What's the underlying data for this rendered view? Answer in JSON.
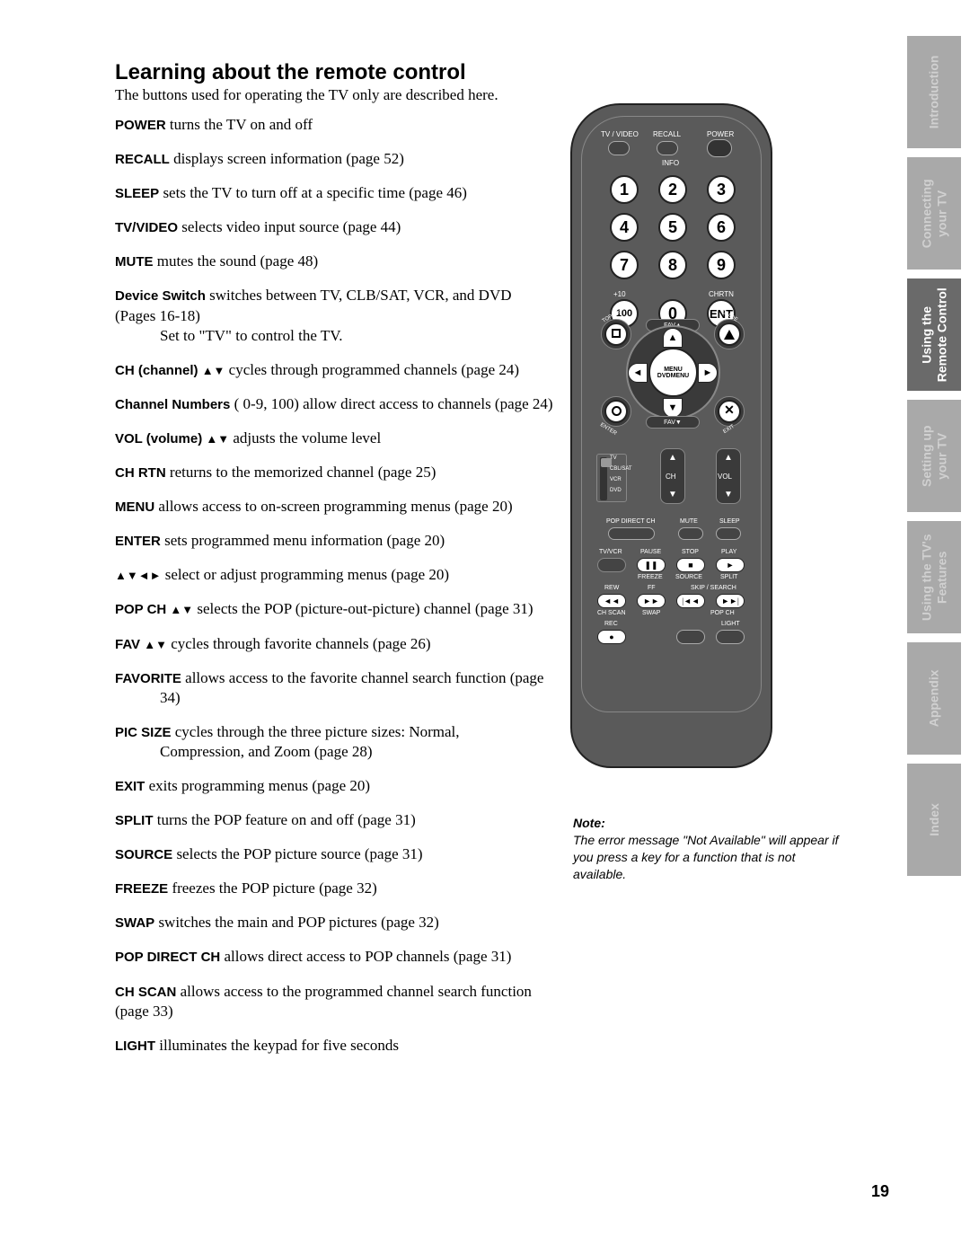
{
  "title": "Learning about the remote control",
  "intro": "The buttons used for operating the TV only are described here.",
  "buttons": [
    {
      "label": "POWER",
      "desc": " turns the TV on and off"
    },
    {
      "label": "RECALL",
      "desc": " displays screen information (page 52)"
    },
    {
      "label": "SLEEP",
      "desc": " sets the TV to turn off at a specific time (page 46)"
    },
    {
      "label": "TV/VIDEO",
      "desc": "  selects video input source (page 44)"
    },
    {
      "label": "MUTE",
      "desc": " mutes the sound (page 48)"
    },
    {
      "label": "Device Switch",
      "desc": " switches between TV, CLB/SAT, VCR, and DVD (Pages 16-18)",
      "cont": "Set to \"TV\" to control the TV."
    },
    {
      "label": "CH (channel) ",
      "arrows": "▲▼",
      "desc": " cycles through programmed channels (page 24)"
    },
    {
      "label": "Channel Numbers",
      "desc": " 0-9, 100) allow direct access to channels (page 24)",
      "prefix": " ("
    },
    {
      "label": "VOL (volume) ",
      "arrows": "▲▼",
      "desc": " adjusts the volume level"
    },
    {
      "label": "CH RTN",
      "desc": " returns to the memorized channel (page 25)"
    },
    {
      "label": "MENU",
      "desc": " allows access to on-screen programming menus (page 20)"
    },
    {
      "label": "ENTER",
      "desc": " sets programmed menu information (page 20)"
    },
    {
      "label": "",
      "arrows": "▲▼◄►",
      "desc": " select or adjust programming menus (page 20)"
    },
    {
      "label": "POP CH ",
      "arrows": "▲▼",
      "desc": " selects the POP (picture-out-picture) channel (page 31)"
    },
    {
      "label": "FAV ",
      "arrows": "▲▼",
      "desc": " cycles through favorite channels (page 26)"
    },
    {
      "label": "FAVORITE",
      "desc": " allows access to the favorite channel search function (page",
      "cont": "34)"
    },
    {
      "label": "PIC SIZE",
      "desc": "  cycles through the three picture sizes: Normal,",
      "cont": "Compression, and Zoom (page 28)"
    },
    {
      "label": "EXIT",
      "desc": " exits programming menus (page 20)"
    },
    {
      "label": "SPLIT",
      "desc": " turns the POP feature on and off (page 31)"
    },
    {
      "label": "SOURCE",
      "desc": " selects the POP picture source (page 31)"
    },
    {
      "label": "FREEZE",
      "desc": " freezes the POP picture (page 32)"
    },
    {
      "label": "SWAP",
      "desc": " switches the main and POP pictures (page 32)"
    },
    {
      "label": "POP DIRECT CH",
      "desc": " allows direct access to POP channels (page 31)"
    },
    {
      "label": "CH SCAN",
      "desc": " allows access to the programmed channel search function (page 33)"
    },
    {
      "label": "LIGHT",
      "desc": " illuminates the keypad for five seconds"
    }
  ],
  "side_tabs": [
    {
      "text": "Introduction",
      "active": false
    },
    {
      "text": "Connecting\nyour TV",
      "active": false
    },
    {
      "text": "Using the\nRemote Control",
      "active": true
    },
    {
      "text": "Setting up\nyour TV",
      "active": false
    },
    {
      "text": "Using the TV's\nFeatures",
      "active": false
    },
    {
      "text": "Appendix",
      "active": false
    },
    {
      "text": "Index",
      "active": false
    }
  ],
  "remote": {
    "top_labels": {
      "tvvideo": "TV / VIDEO",
      "recall": "RECALL",
      "power": "POWER",
      "info": "INFO"
    },
    "numbers": [
      "1",
      "2",
      "3",
      "4",
      "5",
      "6",
      "7",
      "8",
      "9",
      "100",
      "0",
      "ENT"
    ],
    "sub_labels": {
      "plus10": "+10",
      "chrtn": "CHRTN"
    },
    "corner_labels": {
      "tl": "TOP MENU",
      "tr": "GUIDE",
      "bl": "ENTER",
      "br": "EXIT",
      "tl2": "FAVORITE",
      "tr2": "PIC SIZE",
      "br2": "CLEAR"
    },
    "fav_up": "FAV▲",
    "fav_down": "FAV▼",
    "menu1": "MENU",
    "menu2": "DVDMENU",
    "switch": [
      "TV",
      "CBL/SAT",
      "VCR",
      "DVD"
    ],
    "rockers": {
      "ch": "CH",
      "vol": "VOL"
    },
    "row1": {
      "pop": "POP DIRECT CH",
      "mute": "MUTE",
      "sleep": "SLEEP"
    },
    "row2": {
      "tvvcr": "TV/VCR",
      "pause": "PAUSE",
      "stop": "STOP",
      "play": "PLAY"
    },
    "row3": {
      "freeze": "FREEZE",
      "source": "SOURCE",
      "split": "SPLIT"
    },
    "row4": {
      "rew": "REW",
      "ff": "FF",
      "skip": "SKIP / SEARCH"
    },
    "row5": {
      "chscan": "CH SCAN",
      "swap": "SWAP",
      "popch": "POP CH"
    },
    "row6": {
      "rec": "REC",
      "light": "LIGHT"
    }
  },
  "note": {
    "title": "Note:",
    "text": "The error message \"Not Available\" will appear if you press a key for a function that is not available."
  },
  "page_number": "19",
  "colors": {
    "tab_inactive": "#a9a9a9",
    "tab_active": "#6a6a6a",
    "remote_body": "#5a5a5a"
  }
}
